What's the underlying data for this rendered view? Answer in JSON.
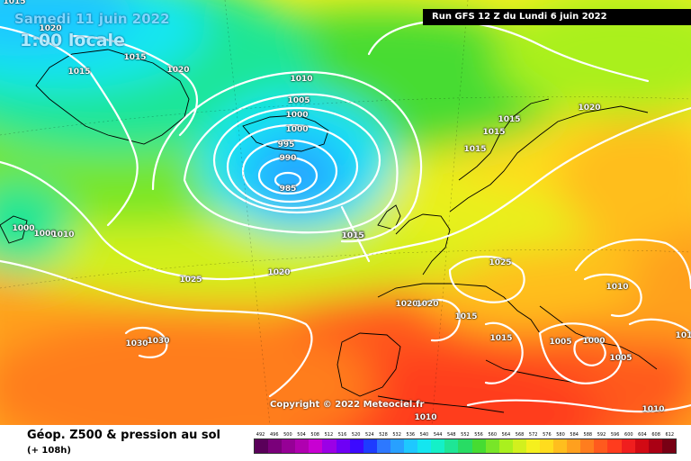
{
  "header": {
    "date": "Samedi 11 juin 2022",
    "time": "1:00 locale",
    "run": "Run GFS 12 Z du Lundi 6 juin 2022"
  },
  "copyright": "Copyright © 2022 Meteociel.fr",
  "footer": {
    "title": "Géop. Z500 & pression au sol",
    "subtitle": "(+ 108h)"
  },
  "scale": {
    "ticks": [
      "492",
      "496",
      "500",
      "504",
      "508",
      "512",
      "516",
      "520",
      "524",
      "528",
      "532",
      "536",
      "540",
      "544",
      "548",
      "552",
      "556",
      "560",
      "564",
      "568",
      "572",
      "576",
      "580",
      "584",
      "588",
      "592",
      "596",
      "600",
      "604",
      "608",
      "612"
    ],
    "colors": [
      "#5a005a",
      "#7a007a",
      "#960096",
      "#b000b0",
      "#c800d2",
      "#9b00e6",
      "#6e00f5",
      "#3c0aff",
      "#1e3cff",
      "#2d78ff",
      "#28a0ff",
      "#1ec8ff",
      "#14e6f0",
      "#14f0c8",
      "#1ee696",
      "#28dc64",
      "#46dc32",
      "#78e628",
      "#aaf01e",
      "#d2f01e",
      "#f5f01e",
      "#ffdc1e",
      "#ffbe1e",
      "#ffa01e",
      "#ff7d1e",
      "#ff5a1e",
      "#ff3c1e",
      "#f01e1e",
      "#d20a14",
      "#aa0014",
      "#780014"
    ]
  },
  "isobars": [
    {
      "text": "1015"
    },
    {
      "text": "1020"
    },
    {
      "text": "1015"
    },
    {
      "text": "1020"
    },
    {
      "text": "1015"
    },
    {
      "text": "1010"
    },
    {
      "text": "1005"
    },
    {
      "text": "1000"
    },
    {
      "text": "1000"
    },
    {
      "text": "995"
    },
    {
      "text": "990"
    },
    {
      "text": "985"
    },
    {
      "text": "1020"
    },
    {
      "text": "1015"
    },
    {
      "text": "1015"
    },
    {
      "text": "1015"
    },
    {
      "text": "1015"
    },
    {
      "text": "1000"
    },
    {
      "text": "1000"
    },
    {
      "text": "1010"
    },
    {
      "text": "1015"
    },
    {
      "text": "1025"
    },
    {
      "text": "1020"
    },
    {
      "text": "1025"
    },
    {
      "text": "1020"
    },
    {
      "text": "1020"
    },
    {
      "text": "1015"
    },
    {
      "text": "1010"
    },
    {
      "text": "1015"
    },
    {
      "text": "1030"
    },
    {
      "text": "1030"
    },
    {
      "text": "1005"
    },
    {
      "text": "1000"
    },
    {
      "text": "1005"
    },
    {
      "text": "1010"
    },
    {
      "text": "1010"
    },
    {
      "text": "101"
    }
  ]
}
